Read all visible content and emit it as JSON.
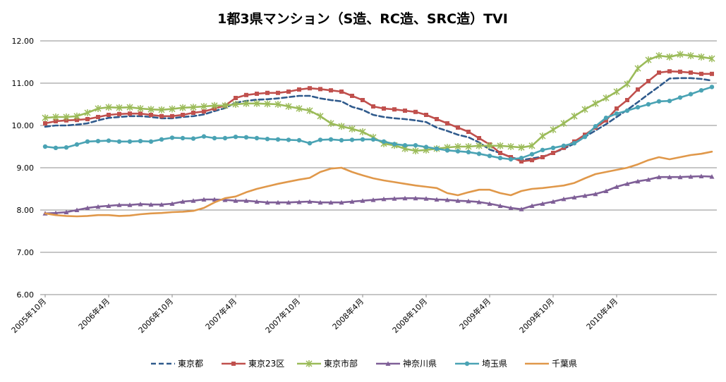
{
  "chart_data": {
    "type": "line",
    "title": "1都3県マンション（S造、RC造、SRC造）TVI",
    "xlabel": "",
    "ylabel": "",
    "ylim": [
      6.0,
      12.0
    ],
    "yticks": [
      "6.00",
      "7.00",
      "8.00",
      "9.00",
      "10.00",
      "11.00",
      "12.00"
    ],
    "grid": true,
    "legend_position": "bottom",
    "x_start": "2005年10月",
    "x_count": 64,
    "x_tick_labels": [
      {
        "index": 0,
        "label": "2005年10月"
      },
      {
        "index": 6,
        "label": "2006年4月"
      },
      {
        "index": 12,
        "label": "2006年10月"
      },
      {
        "index": 18,
        "label": "2007年4月"
      },
      {
        "index": 24,
        "label": "2007年10月"
      },
      {
        "index": 30,
        "label": "2008年4月"
      },
      {
        "index": 36,
        "label": "2008年10月"
      },
      {
        "index": 42,
        "label": "2009年4月"
      },
      {
        "index": 48,
        "label": "2009年10月"
      },
      {
        "index": 54,
        "label": "2010年4月"
      }
    ],
    "series": [
      {
        "name": "東京都",
        "color": "#2f5a8c",
        "dash": true,
        "marker": "none",
        "values": [
          9.97,
          10.0,
          10.0,
          10.02,
          10.05,
          10.12,
          10.18,
          10.2,
          10.22,
          10.22,
          10.2,
          10.17,
          10.17,
          10.2,
          10.22,
          10.26,
          10.34,
          10.41,
          10.54,
          10.58,
          10.61,
          10.62,
          10.64,
          10.67,
          10.7,
          10.7,
          10.64,
          10.6,
          10.57,
          10.44,
          10.37,
          10.25,
          10.2,
          10.17,
          10.15,
          10.12,
          10.08,
          9.95,
          9.87,
          9.78,
          9.72,
          9.6,
          9.43,
          9.35,
          9.25,
          9.18,
          9.22,
          9.26,
          9.35,
          9.45,
          9.57,
          9.73,
          9.88,
          10.03,
          10.2,
          10.37,
          10.55,
          10.74,
          10.92,
          11.11,
          11.12,
          11.12,
          11.1,
          11.06
        ]
      },
      {
        "name": "東京23区",
        "color": "#c0504d",
        "dash": false,
        "marker": "square",
        "values": [
          10.05,
          10.1,
          10.12,
          10.13,
          10.15,
          10.2,
          10.25,
          10.27,
          10.28,
          10.28,
          10.25,
          10.22,
          10.22,
          10.25,
          10.3,
          10.33,
          10.4,
          10.47,
          10.65,
          10.72,
          10.75,
          10.77,
          10.77,
          10.8,
          10.85,
          10.88,
          10.86,
          10.83,
          10.8,
          10.7,
          10.6,
          10.45,
          10.4,
          10.38,
          10.35,
          10.32,
          10.25,
          10.15,
          10.05,
          9.95,
          9.85,
          9.7,
          9.55,
          9.35,
          9.25,
          9.15,
          9.18,
          9.25,
          9.35,
          9.47,
          9.62,
          9.78,
          9.95,
          10.12,
          10.4,
          10.6,
          10.85,
          11.05,
          11.25,
          11.28,
          11.27,
          11.25,
          11.22,
          11.22
        ]
      },
      {
        "name": "東京市部",
        "color": "#9bbb59",
        "dash": false,
        "marker": "star",
        "values": [
          10.18,
          10.2,
          10.2,
          10.22,
          10.3,
          10.4,
          10.43,
          10.42,
          10.43,
          10.4,
          10.38,
          10.37,
          10.39,
          10.42,
          10.43,
          10.45,
          10.47,
          10.47,
          10.5,
          10.52,
          10.52,
          10.51,
          10.5,
          10.45,
          10.4,
          10.35,
          10.22,
          10.05,
          9.98,
          9.92,
          9.85,
          9.72,
          9.57,
          9.53,
          9.45,
          9.4,
          9.42,
          9.45,
          9.48,
          9.5,
          9.5,
          9.52,
          9.52,
          9.52,
          9.5,
          9.48,
          9.52,
          9.75,
          9.9,
          10.05,
          10.22,
          10.38,
          10.52,
          10.65,
          10.8,
          10.98,
          11.35,
          11.55,
          11.65,
          11.62,
          11.68,
          11.65,
          11.62,
          11.58
        ]
      },
      {
        "name": "神奈川県",
        "color": "#7f5f97",
        "dash": false,
        "marker": "triangle",
        "values": [
          7.92,
          7.93,
          7.95,
          8.0,
          8.05,
          8.08,
          8.1,
          8.12,
          8.12,
          8.14,
          8.13,
          8.13,
          8.15,
          8.2,
          8.22,
          8.25,
          8.25,
          8.24,
          8.22,
          8.22,
          8.2,
          8.18,
          8.18,
          8.18,
          8.19,
          8.2,
          8.18,
          8.18,
          8.18,
          8.2,
          8.22,
          8.24,
          8.26,
          8.27,
          8.28,
          8.28,
          8.27,
          8.25,
          8.24,
          8.22,
          8.21,
          8.19,
          8.15,
          8.1,
          8.05,
          8.02,
          8.1,
          8.15,
          8.2,
          8.26,
          8.3,
          8.34,
          8.38,
          8.45,
          8.55,
          8.62,
          8.68,
          8.72,
          8.78,
          8.78,
          8.78,
          8.79,
          8.8,
          8.79
        ]
      },
      {
        "name": "埼玉県",
        "color": "#4aa3b4",
        "dash": false,
        "marker": "circle",
        "values": [
          9.5,
          9.47,
          9.48,
          9.55,
          9.62,
          9.63,
          9.64,
          9.62,
          9.62,
          9.63,
          9.62,
          9.67,
          9.71,
          9.7,
          9.69,
          9.74,
          9.7,
          9.7,
          9.73,
          9.72,
          9.7,
          9.68,
          9.67,
          9.66,
          9.65,
          9.58,
          9.66,
          9.67,
          9.65,
          9.66,
          9.67,
          9.67,
          9.62,
          9.56,
          9.53,
          9.53,
          9.49,
          9.45,
          9.41,
          9.39,
          9.37,
          9.33,
          9.28,
          9.23,
          9.2,
          9.23,
          9.32,
          9.42,
          9.47,
          9.52,
          9.58,
          9.73,
          9.98,
          10.18,
          10.28,
          10.35,
          10.43,
          10.5,
          10.57,
          10.58,
          10.66,
          10.74,
          10.83,
          10.91
        ]
      },
      {
        "name": "千葉県",
        "color": "#e0984a",
        "dash": false,
        "marker": "none",
        "values": [
          7.92,
          7.88,
          7.86,
          7.85,
          7.86,
          7.88,
          7.88,
          7.86,
          7.87,
          7.9,
          7.92,
          7.93,
          7.95,
          7.96,
          7.98,
          8.05,
          8.18,
          8.28,
          8.32,
          8.42,
          8.5,
          8.56,
          8.62,
          8.67,
          8.72,
          8.76,
          8.9,
          8.98,
          9.0,
          8.9,
          8.82,
          8.75,
          8.7,
          8.66,
          8.62,
          8.58,
          8.55,
          8.52,
          8.4,
          8.35,
          8.42,
          8.48,
          8.48,
          8.4,
          8.35,
          8.45,
          8.5,
          8.52,
          8.55,
          8.58,
          8.64,
          8.75,
          8.85,
          8.9,
          8.95,
          9.0,
          9.08,
          9.18,
          9.25,
          9.2,
          9.25,
          9.3,
          9.33,
          9.38
        ]
      }
    ]
  }
}
